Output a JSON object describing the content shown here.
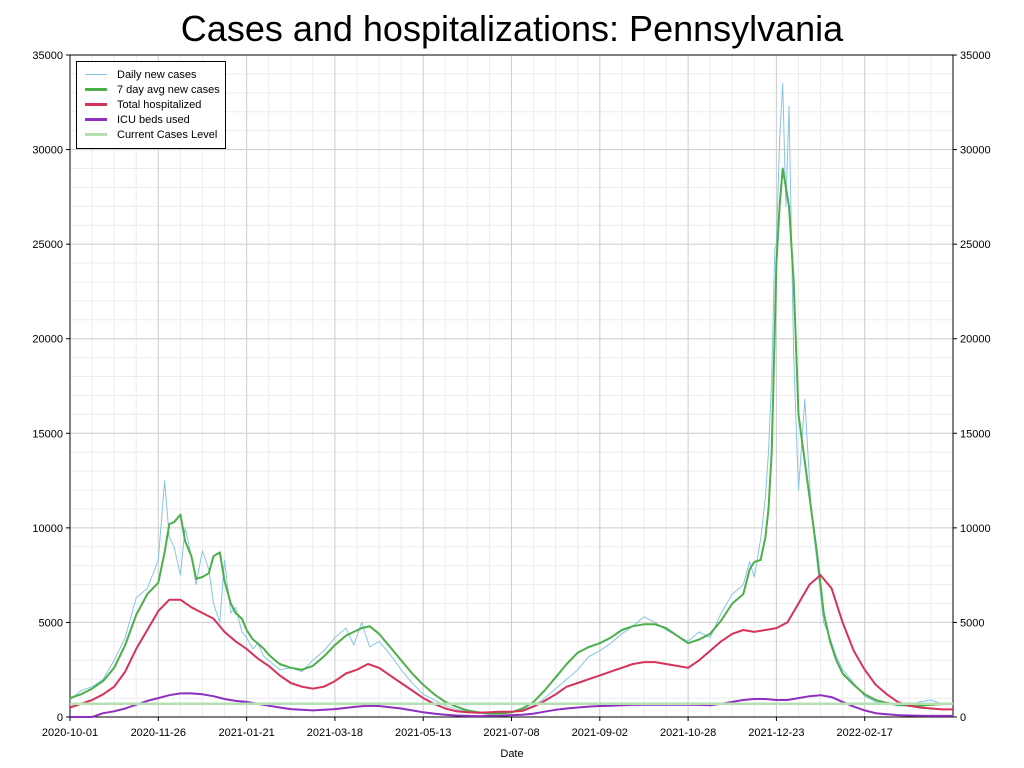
{
  "chart_data": {
    "type": "line",
    "title": "Cases and hospitalizations: Pennsylvania",
    "xlabel": "Date",
    "ylabel": "",
    "ylim": [
      0,
      35000
    ],
    "yticks": [
      0,
      5000,
      10000,
      15000,
      20000,
      25000,
      30000,
      35000
    ],
    "x_range_days": [
      0,
      560
    ],
    "x_tick_labels": [
      "2020-10-01",
      "2020-11-26",
      "2021-01-21",
      "2021-03-18",
      "2021-05-13",
      "2021-07-08",
      "2021-09-02",
      "2021-10-28",
      "2021-12-23",
      "2022-02-17"
    ],
    "x_tick_days": [
      0,
      56,
      112,
      168,
      224,
      280,
      336,
      392,
      448,
      504
    ],
    "grid": true,
    "legend_position": "top-left",
    "series": [
      {
        "name": "Daily new cases",
        "color": "#87c5e6",
        "style": "thin",
        "x": [
          0,
          7,
          14,
          21,
          28,
          35,
          42,
          49,
          56,
          60,
          63,
          66,
          70,
          73,
          77,
          80,
          84,
          88,
          91,
          95,
          98,
          102,
          105,
          109,
          112,
          116,
          119,
          123,
          126,
          130,
          133,
          140,
          147,
          154,
          161,
          168,
          175,
          180,
          185,
          190,
          196,
          203,
          210,
          217,
          224,
          231,
          238,
          245,
          252,
          259,
          266,
          273,
          280,
          287,
          294,
          301,
          308,
          315,
          322,
          329,
          336,
          343,
          350,
          357,
          364,
          371,
          378,
          385,
          392,
          399,
          406,
          413,
          420,
          427,
          431,
          434,
          438,
          441,
          443,
          445,
          447,
          448,
          450,
          452,
          454,
          456,
          459,
          462,
          466,
          470,
          474,
          478,
          482,
          486,
          490,
          497,
          504,
          511,
          518,
          525,
          532,
          539,
          546,
          553,
          560
        ],
        "values": [
          900,
          1400,
          1600,
          2000,
          3000,
          4200,
          6300,
          6800,
          8300,
          12500,
          9500,
          9000,
          7500,
          10000,
          8500,
          7000,
          8800,
          7800,
          6000,
          5000,
          8300,
          5500,
          5800,
          4500,
          4200,
          3600,
          3900,
          3200,
          3000,
          2700,
          2500,
          2600,
          2400,
          3000,
          3500,
          4200,
          4700,
          3800,
          5000,
          3700,
          4000,
          3300,
          2500,
          1800,
          1200,
          900,
          600,
          400,
          300,
          200,
          150,
          180,
          250,
          400,
          600,
          1000,
          1500,
          2000,
          2500,
          3200,
          3500,
          3900,
          4400,
          4800,
          5300,
          5000,
          4600,
          4300,
          4000,
          4500,
          4200,
          5500,
          6500,
          7000,
          8200,
          7400,
          9400,
          11600,
          14000,
          18000,
          24700,
          25000,
          30500,
          33500,
          27000,
          32300,
          19000,
          12000,
          16800,
          11000,
          8000,
          5000,
          4200,
          3200,
          2500,
          1800,
          1100,
          800,
          700,
          600,
          600,
          800,
          900,
          700,
          750
        ]
      },
      {
        "name": "7 day avg new cases",
        "color": "#4daf4a",
        "style": "thick",
        "x": [
          0,
          7,
          14,
          21,
          28,
          35,
          42,
          49,
          56,
          60,
          63,
          66,
          70,
          73,
          77,
          80,
          84,
          88,
          91,
          95,
          98,
          102,
          105,
          109,
          112,
          116,
          119,
          123,
          126,
          130,
          133,
          140,
          147,
          154,
          161,
          168,
          175,
          180,
          185,
          190,
          196,
          203,
          210,
          217,
          224,
          231,
          238,
          245,
          252,
          259,
          266,
          273,
          280,
          287,
          294,
          301,
          308,
          315,
          322,
          329,
          336,
          343,
          350,
          357,
          364,
          371,
          378,
          385,
          392,
          399,
          406,
          413,
          420,
          427,
          431,
          434,
          438,
          441,
          443,
          445,
          447,
          448,
          450,
          452,
          454,
          456,
          459,
          462,
          466,
          470,
          474,
          478,
          482,
          486,
          490,
          497,
          504,
          511,
          518,
          525,
          532,
          539,
          546,
          553,
          560
        ],
        "values": [
          1000,
          1200,
          1500,
          1900,
          2600,
          3800,
          5400,
          6500,
          7100,
          8700,
          10200,
          10300,
          10700,
          9300,
          8500,
          7300,
          7400,
          7600,
          8500,
          8700,
          7200,
          6000,
          5500,
          5200,
          4600,
          4100,
          3900,
          3600,
          3300,
          3000,
          2800,
          2600,
          2500,
          2700,
          3200,
          3800,
          4300,
          4500,
          4700,
          4800,
          4400,
          3700,
          3000,
          2300,
          1700,
          1200,
          800,
          550,
          350,
          250,
          180,
          180,
          250,
          450,
          800,
          1400,
          2100,
          2800,
          3400,
          3700,
          3900,
          4200,
          4600,
          4800,
          4900,
          4900,
          4700,
          4300,
          3900,
          4100,
          4400,
          5100,
          6000,
          6500,
          7800,
          8200,
          8300,
          9500,
          11000,
          14000,
          20500,
          24000,
          27000,
          29000,
          28000,
          27000,
          23000,
          16000,
          13500,
          11000,
          8500,
          5500,
          4000,
          3000,
          2300,
          1700,
          1200,
          900,
          750,
          650,
          600,
          600,
          650,
          680,
          700
        ]
      },
      {
        "name": "Total hospitalized",
        "color": "#d6335a",
        "style": "thick",
        "x": [
          0,
          7,
          14,
          21,
          28,
          35,
          42,
          49,
          56,
          63,
          70,
          77,
          84,
          91,
          98,
          105,
          112,
          119,
          126,
          133,
          140,
          147,
          154,
          161,
          168,
          175,
          182,
          189,
          196,
          203,
          210,
          217,
          224,
          231,
          238,
          245,
          252,
          259,
          266,
          273,
          280,
          287,
          294,
          301,
          308,
          315,
          322,
          329,
          336,
          343,
          350,
          357,
          364,
          371,
          378,
          385,
          392,
          399,
          406,
          413,
          420,
          427,
          434,
          441,
          448,
          455,
          462,
          469,
          476,
          483,
          490,
          497,
          504,
          511,
          518,
          525,
          532,
          539,
          546,
          553,
          560
        ],
        "values": [
          500,
          700,
          900,
          1200,
          1600,
          2400,
          3600,
          4600,
          5600,
          6200,
          6200,
          5800,
          5500,
          5200,
          4500,
          4000,
          3600,
          3100,
          2700,
          2200,
          1800,
          1600,
          1500,
          1600,
          1900,
          2300,
          2500,
          2800,
          2600,
          2200,
          1800,
          1400,
          1000,
          700,
          450,
          300,
          250,
          220,
          250,
          280,
          280,
          320,
          550,
          850,
          1200,
          1600,
          1800,
          2000,
          2200,
          2400,
          2600,
          2800,
          2900,
          2900,
          2800,
          2700,
          2600,
          3000,
          3500,
          4000,
          4400,
          4600,
          4500,
          4600,
          4700,
          5000,
          6000,
          7000,
          7500,
          6800,
          5000,
          3500,
          2500,
          1700,
          1200,
          800,
          600,
          500,
          450,
          400,
          400
        ]
      },
      {
        "name": "ICU beds used",
        "color": "#8e2fc0",
        "style": "thick",
        "x": [
          0,
          7,
          14,
          21,
          28,
          35,
          42,
          49,
          56,
          63,
          70,
          77,
          84,
          91,
          98,
          105,
          112,
          119,
          126,
          133,
          140,
          147,
          154,
          161,
          168,
          175,
          182,
          189,
          196,
          203,
          210,
          217,
          224,
          231,
          238,
          245,
          252,
          259,
          266,
          273,
          280,
          287,
          294,
          301,
          308,
          315,
          322,
          329,
          336,
          343,
          350,
          357,
          364,
          371,
          378,
          385,
          392,
          399,
          406,
          413,
          420,
          427,
          434,
          441,
          448,
          455,
          462,
          469,
          476,
          483,
          490,
          497,
          504,
          511,
          518,
          525,
          532,
          539,
          546,
          553,
          560
        ],
        "values": [
          0,
          0,
          0,
          200,
          300,
          450,
          650,
          850,
          1000,
          1150,
          1250,
          1250,
          1200,
          1100,
          950,
          850,
          800,
          700,
          600,
          500,
          420,
          380,
          350,
          380,
          420,
          480,
          550,
          600,
          580,
          520,
          450,
          350,
          250,
          180,
          120,
          80,
          60,
          50,
          60,
          70,
          100,
          120,
          180,
          280,
          380,
          450,
          500,
          550,
          580,
          600,
          620,
          640,
          650,
          650,
          650,
          650,
          650,
          640,
          620,
          700,
          800,
          900,
          950,
          950,
          900,
          900,
          1000,
          1100,
          1150,
          1050,
          800,
          550,
          350,
          200,
          150,
          100,
          80,
          70,
          60,
          60,
          60
        ]
      },
      {
        "name": "Current Cases Level",
        "color": "#b5e0b3",
        "style": "thick",
        "x": [
          0,
          560
        ],
        "values": [
          700,
          700
        ]
      }
    ]
  }
}
